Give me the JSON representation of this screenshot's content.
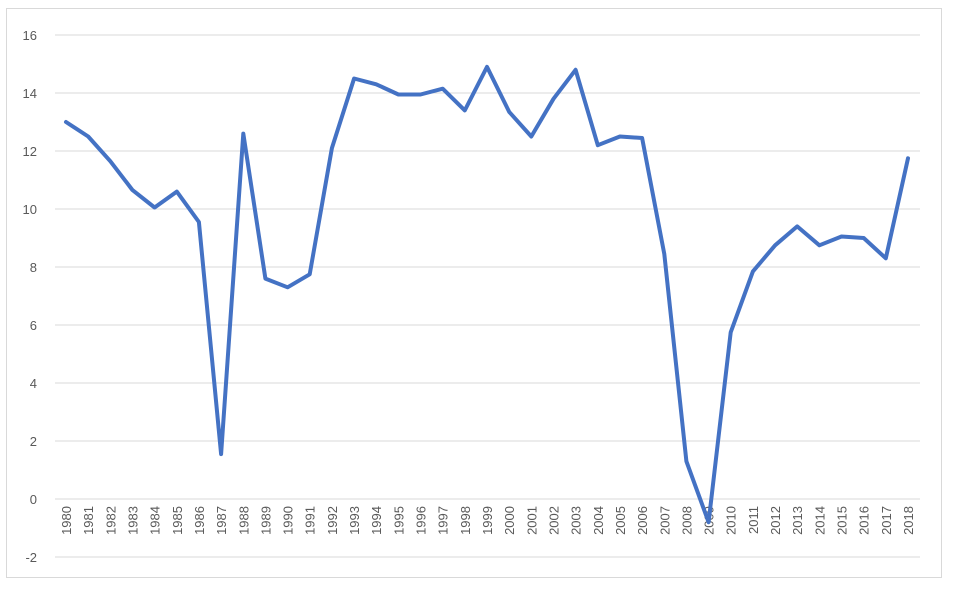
{
  "chart_data": {
    "type": "line",
    "title": "",
    "xlabel": "",
    "ylabel": "",
    "ylim": [
      -2,
      16
    ],
    "yticks": [
      -2,
      0,
      2,
      4,
      6,
      8,
      10,
      12,
      14,
      16
    ],
    "ytick_labels": [
      "-2",
      "0",
      "2",
      "4",
      "6",
      "8",
      "10",
      "12",
      "14",
      "16"
    ],
    "grid": true,
    "legend": "none",
    "series_color": "#4472c4",
    "x": [
      "1980",
      "1981",
      "1982",
      "1983",
      "1984",
      "1985",
      "1986",
      "1987",
      "1988",
      "1989",
      "1990",
      "1991",
      "1992",
      "1993",
      "1994",
      "1995",
      "1996",
      "1997",
      "1998",
      "1999",
      "2000",
      "2001",
      "2002",
      "2003",
      "2004",
      "2005",
      "2006",
      "2007",
      "2008",
      "2009",
      "2010",
      "2011",
      "2012",
      "2013",
      "2014",
      "2015",
      "2016",
      "2017",
      "2018"
    ],
    "series": [
      {
        "values": [
          13.0,
          12.5,
          11.65,
          10.65,
          10.05,
          10.6,
          9.55,
          1.55,
          12.6,
          7.6,
          7.3,
          7.75,
          12.1,
          14.5,
          14.3,
          13.95,
          13.95,
          14.15,
          13.4,
          14.9,
          13.35,
          12.5,
          13.8,
          14.8,
          12.2,
          12.5,
          12.45,
          8.45,
          1.3,
          -0.8,
          5.75,
          7.85,
          8.75,
          9.4,
          8.75,
          9.05,
          9.0,
          8.3,
          11.75
        ]
      }
    ]
  }
}
